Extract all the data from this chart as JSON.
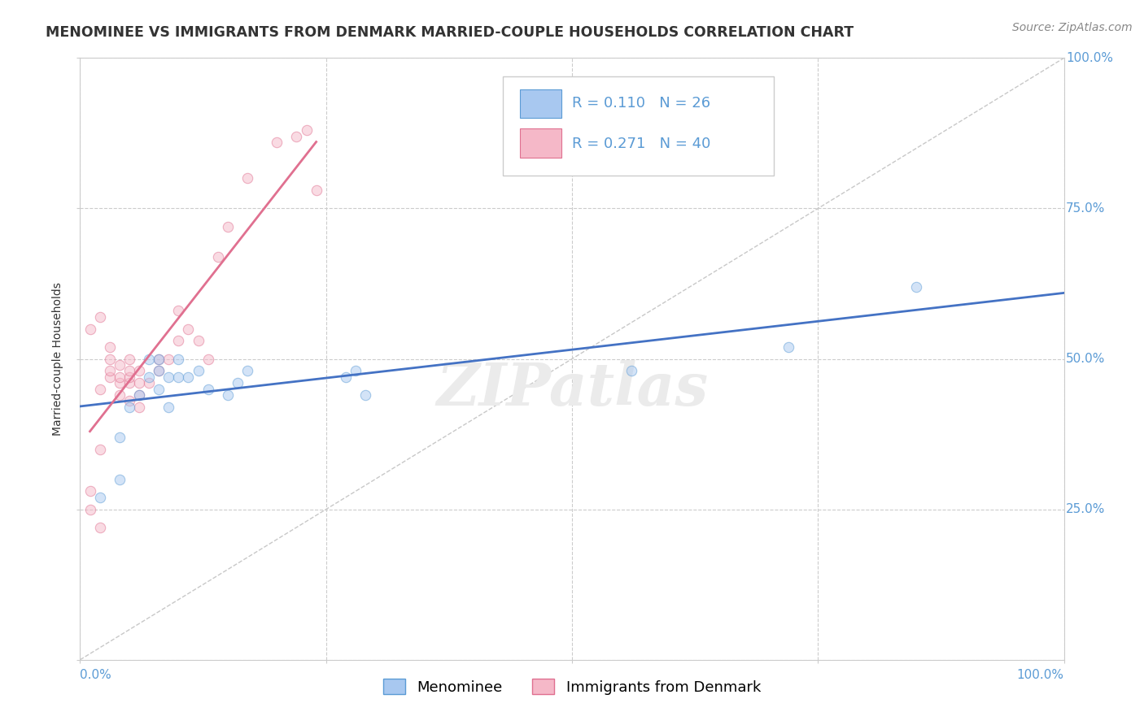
{
  "title": "MENOMINEE VS IMMIGRANTS FROM DENMARK MARRIED-COUPLE HOUSEHOLDS CORRELATION CHART",
  "source": "Source: ZipAtlas.com",
  "ylabel": "Married-couple Households",
  "watermark": "ZIPatlas",
  "xlim": [
    0.0,
    1.0
  ],
  "ylim": [
    0.0,
    1.0
  ],
  "menominee_R": 0.11,
  "menominee_N": 26,
  "denmark_R": 0.271,
  "denmark_N": 40,
  "menominee_color": "#A8C8F0",
  "menominee_edge": "#5B9BD5",
  "denmark_color": "#F5B8C8",
  "denmark_edge": "#E07090",
  "trendline_menominee": "#4472C4",
  "trendline_denmark": "#E07090",
  "diagonal_color": "#C8C8C8",
  "grid_color": "#CCCCCC",
  "menominee_x": [
    0.02,
    0.04,
    0.04,
    0.05,
    0.06,
    0.07,
    0.07,
    0.08,
    0.08,
    0.08,
    0.09,
    0.09,
    0.1,
    0.1,
    0.11,
    0.12,
    0.13,
    0.15,
    0.16,
    0.17,
    0.27,
    0.28,
    0.29,
    0.56,
    0.72,
    0.85
  ],
  "menominee_y": [
    0.27,
    0.3,
    0.37,
    0.42,
    0.44,
    0.47,
    0.5,
    0.45,
    0.48,
    0.5,
    0.42,
    0.47,
    0.47,
    0.5,
    0.47,
    0.48,
    0.45,
    0.44,
    0.46,
    0.48,
    0.47,
    0.48,
    0.44,
    0.48,
    0.52,
    0.62
  ],
  "denmark_x": [
    0.01,
    0.01,
    0.01,
    0.02,
    0.02,
    0.02,
    0.02,
    0.03,
    0.03,
    0.03,
    0.03,
    0.04,
    0.04,
    0.04,
    0.04,
    0.05,
    0.05,
    0.05,
    0.05,
    0.05,
    0.06,
    0.06,
    0.06,
    0.06,
    0.07,
    0.08,
    0.08,
    0.09,
    0.1,
    0.1,
    0.11,
    0.12,
    0.13,
    0.14,
    0.15,
    0.17,
    0.2,
    0.22,
    0.23,
    0.24
  ],
  "denmark_y": [
    0.25,
    0.28,
    0.55,
    0.22,
    0.35,
    0.45,
    0.57,
    0.47,
    0.48,
    0.5,
    0.52,
    0.44,
    0.46,
    0.47,
    0.49,
    0.43,
    0.46,
    0.47,
    0.48,
    0.5,
    0.42,
    0.44,
    0.46,
    0.48,
    0.46,
    0.48,
    0.5,
    0.5,
    0.53,
    0.58,
    0.55,
    0.53,
    0.5,
    0.67,
    0.72,
    0.8,
    0.86,
    0.87,
    0.88,
    0.78
  ],
  "background_color": "#FFFFFF",
  "title_color": "#333333",
  "title_fontsize": 12.5,
  "axis_label_fontsize": 10,
  "tick_fontsize": 11,
  "legend_fontsize": 13,
  "source_fontsize": 10,
  "scatter_size": 80,
  "scatter_alpha": 0.5
}
